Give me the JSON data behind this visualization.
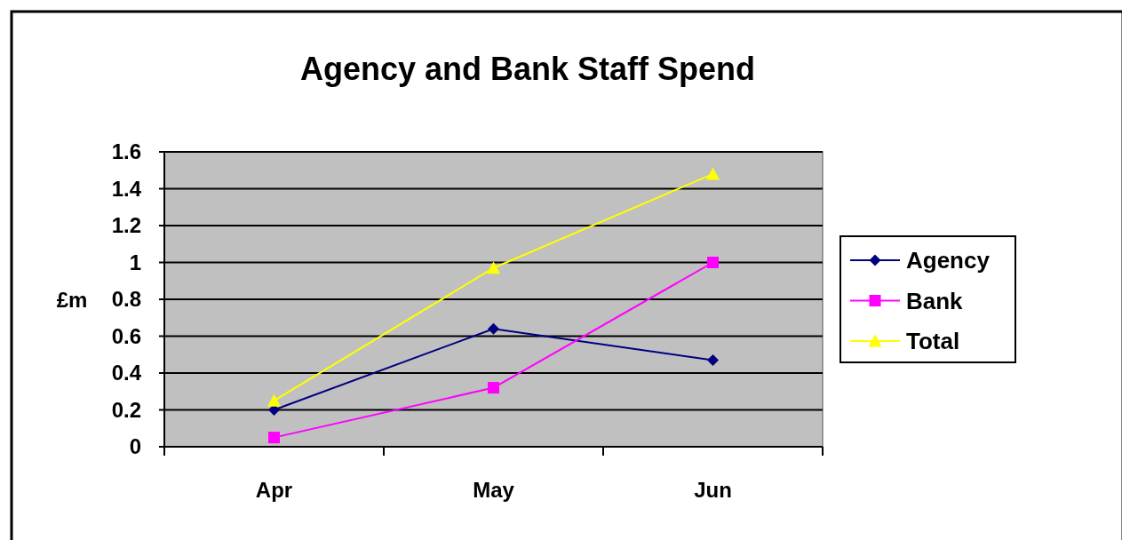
{
  "chart_data": {
    "type": "line",
    "title": "Agency and Bank Staff Spend",
    "ylabel": "£m",
    "categories": [
      "Apr",
      "May",
      "Jun"
    ],
    "series": [
      {
        "name": "Agency",
        "color": "#000080",
        "marker": "diamond",
        "values": [
          0.2,
          0.64,
          0.47
        ]
      },
      {
        "name": "Bank",
        "color": "#ff00ff",
        "marker": "square",
        "values": [
          0.05,
          0.32,
          1.0
        ]
      },
      {
        "name": "Total",
        "color": "#ffff00",
        "marker": "triangle",
        "values": [
          0.25,
          0.97,
          1.48
        ]
      }
    ],
    "ylim": [
      0,
      1.6
    ],
    "yticks": [
      0,
      0.2,
      0.4,
      0.6,
      0.8,
      1,
      1.2,
      1.4,
      1.6
    ],
    "grid": "y",
    "legend": "right"
  }
}
